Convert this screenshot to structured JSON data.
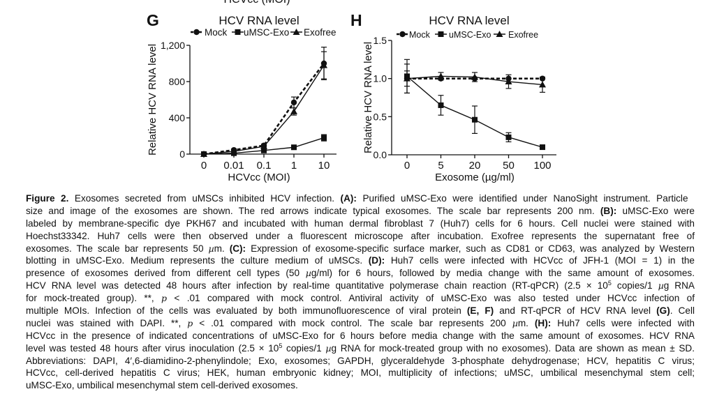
{
  "cropped_top_label": "HCVcc (MOI)",
  "chart_data": [
    {
      "panel": "G",
      "type": "line",
      "title": "HCV RNA level",
      "xlabel": "HCVcc (MOI)",
      "ylabel": "Relative HCV RNA level",
      "categories": [
        "0",
        "0.01",
        "0.1",
        "1",
        "10"
      ],
      "yticks": [
        0,
        400,
        800,
        1200
      ],
      "ytick_labels": [
        "0",
        "400",
        "800",
        "1,200"
      ],
      "ylim": [
        0,
        1200
      ],
      "legend": "top",
      "series": [
        {
          "name": "Mock",
          "marker": "circle",
          "dashed": true,
          "values": [
            0,
            45,
            95,
            570,
            1000
          ],
          "errors": [
            5,
            10,
            15,
            60,
            180
          ]
        },
        {
          "name": "uMSC-Exo",
          "marker": "square",
          "dashed": false,
          "values": [
            0,
            10,
            40,
            75,
            180
          ],
          "errors": [
            3,
            5,
            8,
            10,
            35
          ]
        },
        {
          "name": "Exofree",
          "marker": "triangle",
          "dashed": false,
          "values": [
            0,
            30,
            85,
            470,
            980
          ],
          "errors": [
            5,
            8,
            15,
            40,
            150
          ]
        }
      ]
    },
    {
      "panel": "H",
      "type": "line",
      "title": "HCV RNA level",
      "xlabel": "Exosome (µg/ml)",
      "ylabel": "Relative HCV RNA level",
      "categories": [
        "0",
        "5",
        "20",
        "50",
        "100"
      ],
      "yticks": [
        0,
        0.5,
        1.0,
        1.5
      ],
      "ytick_labels": [
        "0.0",
        "0.5",
        "1.0",
        "1.5"
      ],
      "ylim": [
        0,
        1.5
      ],
      "legend": "top",
      "series": [
        {
          "name": "Mock",
          "marker": "circle",
          "dashed": true,
          "values": [
            1.0,
            1.0,
            1.0,
            1.0,
            1.0
          ],
          "errors": [
            0.1,
            0.0,
            0.0,
            0.0,
            0.0
          ]
        },
        {
          "name": "uMSC-Exo",
          "marker": "square",
          "dashed": false,
          "values": [
            1.03,
            0.65,
            0.46,
            0.23,
            0.1
          ],
          "errors": [
            0.22,
            0.13,
            0.18,
            0.06,
            0.01
          ]
        },
        {
          "name": "Exofree",
          "marker": "triangle",
          "dashed": false,
          "values": [
            1.0,
            1.03,
            1.02,
            0.96,
            0.92
          ],
          "errors": [
            0.19,
            0.05,
            0.06,
            0.09,
            0.1
          ]
        }
      ]
    }
  ],
  "caption_lines": [
    [
      [
        "b",
        "Figure 2."
      ],
      [
        "",
        "   Exosomes secreted from uMSCs inhibited HCV infection. "
      ],
      [
        "b",
        "(A):"
      ],
      [
        "",
        " Purified uMSC-Exo were identified under NanoSight instrument. Particle"
      ]
    ],
    [
      [
        "",
        "size and image of the exosomes are shown. The red arrows indicate typical exosomes. The scale bar represents 200 nm. "
      ],
      [
        "b",
        "(B):"
      ],
      [
        "",
        " uMSC-Exo were"
      ]
    ],
    [
      [
        "",
        "labeled by membrane-specific dye PKH67 and incubated with human dermal fibroblast 7 (Huh7) cells for 6 hours. Cell nuclei were stained with"
      ]
    ],
    [
      [
        "",
        "Hoechst33342. Huh7 cells were then observed under a fluorescent microscope after incubation. Exofree represents the supernatant free of"
      ]
    ],
    [
      [
        "",
        "exosomes. The scale bar represents 50 "
      ],
      [
        "i",
        "µ"
      ],
      [
        "",
        "m. "
      ],
      [
        "b",
        "(C):"
      ],
      [
        "",
        " Expression of exosome-specific surface marker, such as CD81 or CD63, was analyzed by Western"
      ]
    ],
    [
      [
        "",
        "blotting in uMSC-Exo. Medium represents the culture medium of uMSCs. "
      ],
      [
        "b",
        "(D):"
      ],
      [
        "",
        " Huh7 cells were infected with HCVcc of JFH-1 (MOI = 1) in the"
      ]
    ],
    [
      [
        "",
        "presence of exosomes derived from different cell types (50 "
      ],
      [
        "i",
        "µ"
      ],
      [
        "",
        "g/ml) for 6 hours, followed by media change with the same amount of exosomes."
      ]
    ],
    [
      [
        "",
        "HCV RNA level was detected 48 hours after infection by real-time quantitative polymerase chain reaction (RT-qPCR) (2.5 × 10"
      ],
      [
        "sup",
        "5"
      ],
      [
        "",
        " copies/1 "
      ],
      [
        "i",
        "µ"
      ],
      [
        "",
        "g RNA"
      ]
    ],
    [
      [
        "",
        "for mock-treated group). **, "
      ],
      [
        "i",
        "p"
      ],
      [
        "",
        " < .01 compared with mock control. Antiviral activity of uMSC-Exo was also tested under HCVcc infection of"
      ]
    ],
    [
      [
        "",
        "multiple MOIs. Infection of the cells was evaluated by both immunofluorescence of viral protein "
      ],
      [
        "b",
        "(E, F)"
      ],
      [
        "",
        " and RT-qPCR of HCV RNA level "
      ],
      [
        "b",
        "(G)"
      ],
      [
        "",
        ". Cell"
      ]
    ],
    [
      [
        "",
        "nuclei was stained with DAPI. **, "
      ],
      [
        "i",
        "p"
      ],
      [
        "",
        " < .01 compared with mock control. The scale bar represents 200 "
      ],
      [
        "i",
        "µ"
      ],
      [
        "",
        "m. "
      ],
      [
        "b",
        "(H):"
      ],
      [
        "",
        " Huh7 cells were infected with"
      ]
    ],
    [
      [
        "",
        "HCVcc in the presence of indicated concentrations of uMSC-Exo for 6 hours before media change with the same amount of exosomes. HCV RNA"
      ]
    ],
    [
      [
        "",
        "level was tested 48 hours after virus inoculation (2.5 × 10"
      ],
      [
        "sup",
        "5"
      ],
      [
        "",
        " copies/1 "
      ],
      [
        "i",
        "µ"
      ],
      [
        "",
        "g RNA for mock-treated group with no exosomes). Data are shown as mean ± SD."
      ]
    ],
    [
      [
        "",
        "Abbreviations: DAPI, 4′,6-diamidino-2-phenylindole; Exo, exosomes; GAPDH, glyceraldehyde 3-phosphate dehydrogenase; HCV, hepatitis C virus;"
      ]
    ],
    [
      [
        "",
        "HCVcc, cell-derived hepatitis C virus; HEK, human embryonic kidney; MOI, multiplicity of infections; uMSC, umbilical mesenchymal stem cell;"
      ]
    ],
    [
      [
        "",
        "uMSC-Exo, umbilical mesenchymal stem cell-derived exosomes."
      ]
    ]
  ]
}
